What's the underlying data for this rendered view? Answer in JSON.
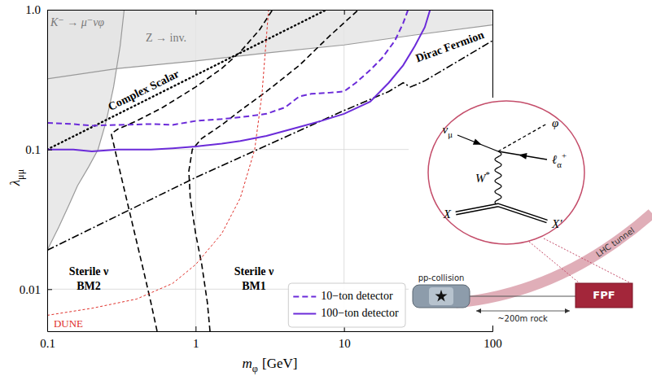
{
  "chart_data": {
    "type": "line",
    "log": true,
    "grid": true,
    "legend": "lower right",
    "xlabel": {
      "text": "m",
      "sub": "φ",
      "unit": "[GeV]"
    },
    "ylabel": {
      "text": "λ",
      "sub": "μμ"
    },
    "xlim": [
      0.1,
      100
    ],
    "xticks": [
      0.1,
      1,
      10,
      100
    ],
    "ylim": [
      0.005,
      1
    ],
    "yticks": [
      0.01,
      0.1,
      {
        "value": 1,
        "label": "1.0"
      }
    ],
    "excluded": [
      {
        "name": "K⁻ → μ⁻νφ",
        "color": "#9a9a9a",
        "x": [
          0.1,
          0.12,
          0.14,
          0.16,
          0.19,
          0.22,
          0.25,
          0.28,
          0.31,
          0.33
        ],
        "values": [
          0.019,
          0.028,
          0.04,
          0.055,
          0.075,
          0.1,
          0.16,
          0.28,
          0.55,
          1.0
        ]
      },
      {
        "name": "Z → inv.",
        "color": "#9a9a9a",
        "x": [
          0.1,
          0.3,
          1,
          3,
          10,
          30,
          100
        ],
        "values": [
          0.32,
          0.38,
          0.43,
          0.49,
          0.56,
          0.66,
          0.78
        ]
      }
    ],
    "curves": [
      {
        "name": "Complex Scalar",
        "color": "#000000",
        "line_style": "dotted",
        "x": [
          0.1,
          1,
          7.6
        ],
        "values": [
          0.1,
          0.34,
          1.0
        ]
      },
      {
        "name": "Dirac Fermion",
        "color": "#000000",
        "line_style": "dashdot",
        "x": [
          0.1,
          1,
          10,
          20,
          25,
          28,
          35,
          100
        ],
        "values": [
          0.019,
          0.063,
          0.19,
          0.26,
          0.3,
          0.28,
          0.31,
          0.6
        ]
      },
      {
        "name": "Sterile ν BM2",
        "color": "#000000",
        "line_style": "dashed",
        "x": [
          0.55,
          0.5,
          0.45,
          0.4,
          0.35,
          0.3,
          0.27,
          0.3,
          0.4,
          0.6,
          1,
          1.5,
          2,
          2.7,
          3.3
        ],
        "values": [
          0.005,
          0.008,
          0.013,
          0.022,
          0.04,
          0.08,
          0.13,
          0.14,
          0.16,
          0.2,
          0.28,
          0.38,
          0.5,
          0.72,
          1.0
        ]
      },
      {
        "name": "Sterile ν BM1",
        "color": "#000000",
        "line_style": "dashed",
        "x": [
          1.25,
          1.2,
          1.1,
          1.0,
          0.92,
          0.9,
          0.95,
          1.1,
          1.5,
          2,
          3,
          5,
          8,
          12.5
        ],
        "values": [
          0.005,
          0.008,
          0.015,
          0.025,
          0.045,
          0.07,
          0.1,
          0.12,
          0.15,
          0.19,
          0.26,
          0.4,
          0.65,
          1.0
        ]
      },
      {
        "name": "DUNE",
        "color": "#e0302a",
        "line_style": "dashed",
        "x": [
          0.1,
          0.2,
          0.4,
          0.7,
          1,
          1.5,
          2,
          2.5,
          2.8,
          3.1
        ],
        "values": [
          0.0065,
          0.0073,
          0.0085,
          0.011,
          0.015,
          0.025,
          0.045,
          0.1,
          0.25,
          1.0
        ]
      }
    ],
    "series": [
      {
        "name": "10−ton detector",
        "color": "#6b2bd9",
        "line_style": "dashed",
        "x": [
          0.1,
          0.15,
          0.2,
          0.3,
          0.5,
          0.7,
          1,
          1.5,
          2,
          3,
          4,
          5,
          6,
          8,
          10,
          12,
          15,
          18,
          22,
          25,
          27
        ],
        "values": [
          0.155,
          0.152,
          0.148,
          0.15,
          0.152,
          0.15,
          0.16,
          0.165,
          0.17,
          0.18,
          0.2,
          0.24,
          0.25,
          0.255,
          0.26,
          0.3,
          0.37,
          0.45,
          0.6,
          0.8,
          1.0
        ]
      },
      {
        "name": "100−ton detector",
        "color": "#6b2bd9",
        "line_style": "solid",
        "x": [
          0.1,
          0.15,
          0.2,
          0.3,
          0.5,
          0.7,
          1,
          1.5,
          2,
          3,
          5,
          7,
          10,
          15,
          20,
          25,
          30,
          35,
          38
        ],
        "values": [
          0.1,
          0.1,
          0.097,
          0.1,
          0.1,
          0.102,
          0.105,
          0.11,
          0.115,
          0.125,
          0.145,
          0.16,
          0.18,
          0.22,
          0.3,
          0.4,
          0.55,
          0.75,
          1.0
        ]
      }
    ],
    "inset": {
      "neutrino": {
        "text": "ν",
        "sub": "μ"
      },
      "scalar": {
        "text": "φ"
      },
      "lepton": {
        "text": "ℓ",
        "sub": "α",
        "sup": "+"
      },
      "boson": {
        "text": "W",
        "sup": "*"
      },
      "initial": {
        "text": "X"
      },
      "final": {
        "text": "X′"
      },
      "collision": "pp-collision",
      "tunnel": "LHC tunnel",
      "rock": "~200m rock",
      "detector": "FPF"
    }
  }
}
